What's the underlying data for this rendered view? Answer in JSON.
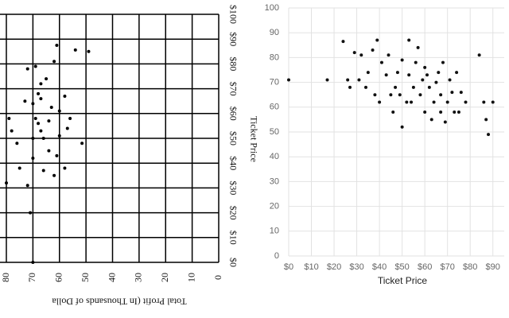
{
  "chart_data": [
    {
      "type": "scatter",
      "rotated": true,
      "x_label": "Ticket Price",
      "y_label": "Total Profit (In Thousands of Dolla",
      "xlim": [
        0,
        100
      ],
      "ylim": [
        0,
        80
      ],
      "xticks": [
        {
          "value": 0,
          "label": "$0"
        },
        {
          "value": 10,
          "label": "$10"
        },
        {
          "value": 20,
          "label": "$20"
        },
        {
          "value": 30,
          "label": "$30"
        },
        {
          "value": 40,
          "label": "$40"
        },
        {
          "value": 50,
          "label": "$50"
        },
        {
          "value": 60,
          "label": "$60"
        },
        {
          "value": 70,
          "label": "$70"
        },
        {
          "value": 80,
          "label": "$80"
        },
        {
          "value": 90,
          "label": "$90"
        },
        {
          "value": 100,
          "label": "$100"
        }
      ],
      "yticks": [
        0,
        10,
        20,
        30,
        40,
        50,
        60,
        70,
        80
      ],
      "color": "#000000",
      "grid": true,
      "x": [
        87.5,
        85.6,
        85,
        81,
        74,
        68,
        66,
        62.5,
        64,
        65,
        61,
        58,
        48,
        54,
        58,
        56,
        53,
        50,
        50,
        45,
        43,
        38,
        35,
        37,
        42,
        31,
        38,
        48,
        53,
        58,
        78,
        79,
        72,
        67,
        57,
        51,
        20,
        0,
        32
      ],
      "y": [
        61,
        54,
        49,
        62,
        65,
        68,
        67,
        63,
        70,
        73,
        60,
        56,
        51.5,
        57,
        69,
        68,
        67,
        70,
        66,
        64,
        61,
        58,
        62,
        66,
        70,
        72,
        75,
        76,
        78,
        79,
        72,
        69,
        67,
        58,
        64,
        60,
        71,
        70,
        80
      ]
    },
    {
      "type": "scatter",
      "rotated": false,
      "x_label": "Ticket Price",
      "xlim": [
        0,
        95
      ],
      "ylim": [
        0,
        100
      ],
      "xticks": [
        {
          "value": 0,
          "label": "$0"
        },
        {
          "value": 10,
          "label": "$10"
        },
        {
          "value": 20,
          "label": "$20"
        },
        {
          "value": 30,
          "label": "$30"
        },
        {
          "value": 40,
          "label": "$40"
        },
        {
          "value": 50,
          "label": "$50"
        },
        {
          "value": 60,
          "label": "$60"
        },
        {
          "value": 70,
          "label": "$70"
        },
        {
          "value": 80,
          "label": "$80"
        },
        {
          "value": 90,
          "label": "$90"
        }
      ],
      "yticks": [
        0,
        10,
        20,
        30,
        40,
        50,
        60,
        70,
        80,
        90,
        100
      ],
      "color": "#111111",
      "grid": true,
      "x": [
        0,
        17,
        24,
        26,
        29,
        32,
        34,
        37,
        39,
        41,
        43,
        45,
        47,
        48,
        50,
        52,
        53,
        55,
        57,
        59,
        60,
        62,
        64,
        66,
        67,
        69,
        71,
        73,
        74,
        76,
        78,
        84,
        86,
        87,
        88,
        90,
        27,
        31,
        35,
        38,
        40,
        44,
        46,
        49,
        50,
        53,
        54,
        56,
        58,
        60,
        61,
        63,
        65,
        67,
        68,
        70,
        72,
        75
      ],
      "y": [
        71,
        71,
        86.5,
        71,
        82,
        81,
        68,
        83,
        87,
        78,
        73,
        65,
        68,
        74,
        52,
        62,
        87,
        68,
        84,
        71,
        58,
        68,
        62,
        74,
        65,
        54,
        71,
        58,
        74,
        66,
        62,
        81,
        62,
        55,
        49,
        62,
        68,
        71,
        74,
        65,
        62,
        81,
        58,
        65,
        79,
        73,
        62,
        78,
        65,
        76,
        73,
        55,
        70,
        58,
        78,
        62,
        66,
        58
      ]
    }
  ]
}
